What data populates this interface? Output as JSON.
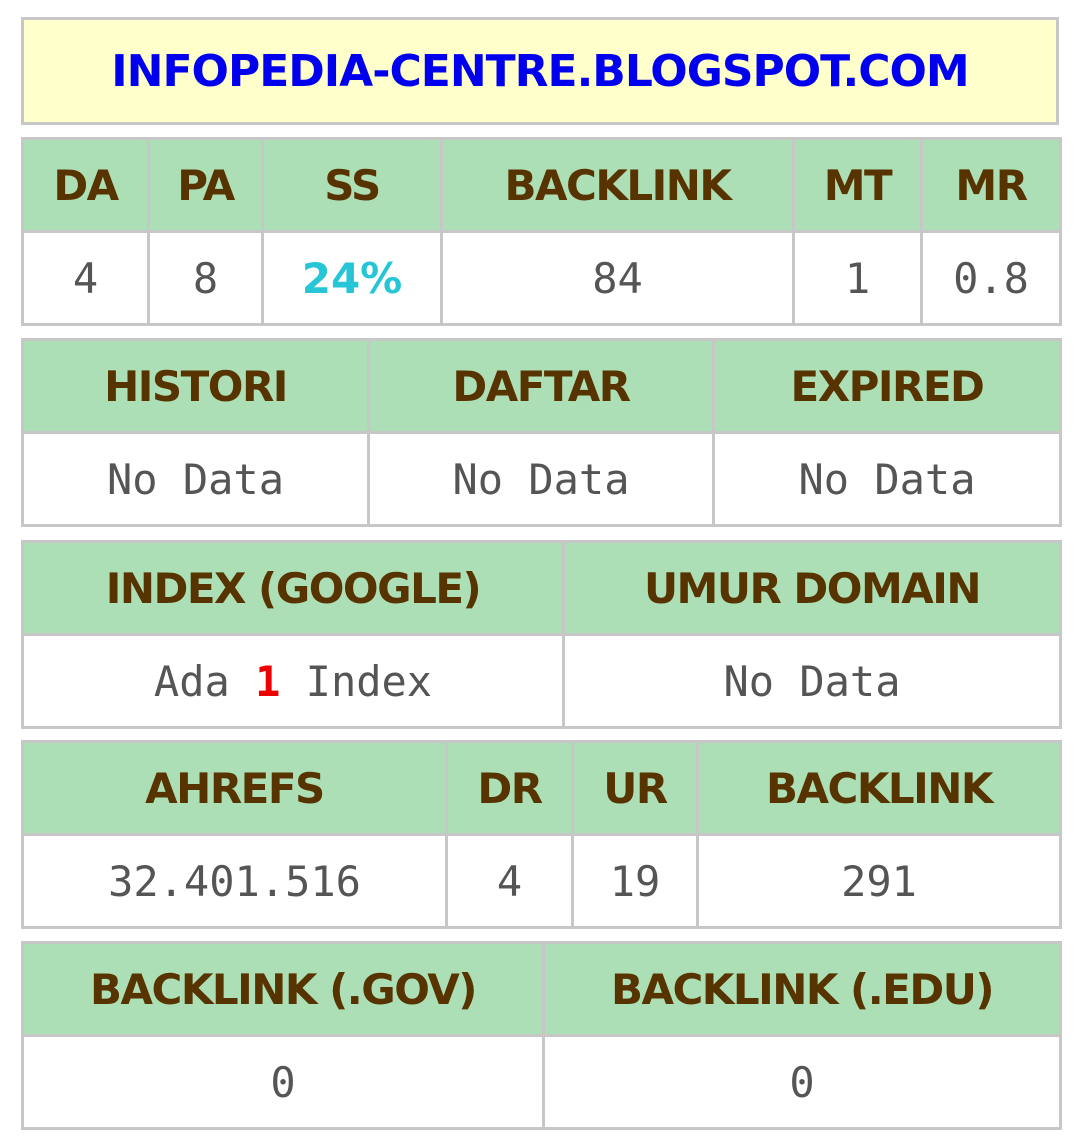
{
  "title": "INFOPEDIA-CENTRE.BLOGSPOT.COM",
  "moz": {
    "headers": [
      "DA",
      "PA",
      "SS",
      "BACKLINK",
      "MT",
      "MR"
    ],
    "values": [
      "4",
      "8",
      "24%",
      "84",
      "1",
      "0.8"
    ]
  },
  "history": {
    "headers": [
      "HISTORI",
      "DAFTAR",
      "EXPIRED"
    ],
    "values": [
      "No Data",
      "No Data",
      "No Data"
    ]
  },
  "index": {
    "headers": [
      "INDEX (GOOGLE)",
      "UMUR DOMAIN"
    ],
    "index_prefix": "Ada",
    "index_count": "1",
    "index_suffix": "Index",
    "umur_value": "No Data"
  },
  "ahrefs": {
    "headers": [
      "AHREFS",
      "DR",
      "UR",
      "BACKLINK"
    ],
    "values": [
      "32.401.516",
      "4",
      "19",
      "291"
    ]
  },
  "edu_gov": {
    "headers": [
      "BACKLINK (.GOV)",
      "BACKLINK (.EDU)"
    ],
    "values": [
      "0",
      "0"
    ]
  },
  "colors": {
    "title_bg": "#ffffcc",
    "title_text": "#0000ee",
    "header_bg": "#addfb6",
    "header_text": "#573300",
    "value_text": "#555555",
    "ss_highlight": "#26c6d6",
    "index_highlight": "#ee0000",
    "border": "#c7c7c7"
  }
}
